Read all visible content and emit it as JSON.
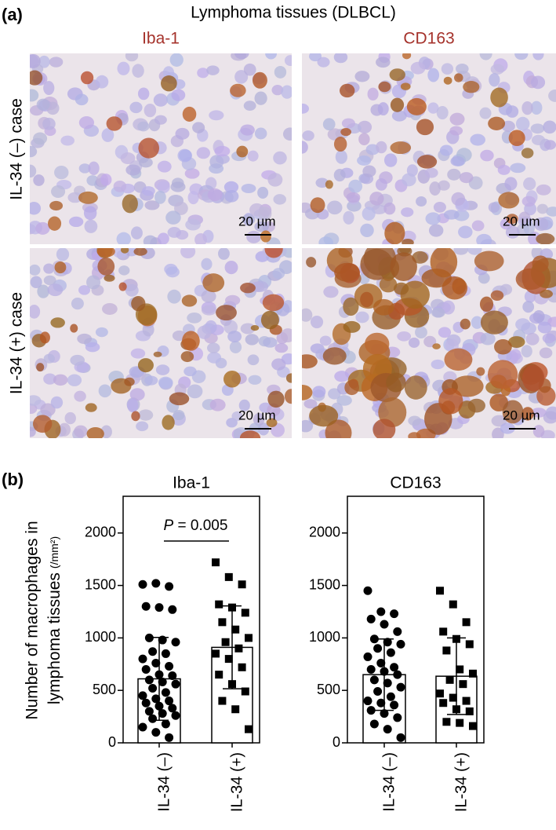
{
  "panel_a": {
    "label": "(a)",
    "title": "Lymphoma tissues (DLBCL)",
    "columns": [
      "Iba-1",
      "CD163"
    ],
    "rows": [
      "IL-34 (–) case",
      "IL-34 (+) case"
    ],
    "scale_labels": [
      "20 µm",
      "20 µm",
      "20 µm",
      "20 µm"
    ],
    "column_color": "#a5322b"
  },
  "panel_b_label": "(b)",
  "chart_data": [
    {
      "type": "bar",
      "title": "Iba-1",
      "y_label": [
        "Number of macrophages in",
        "lymphoma tissues",
        "(/mm²)"
      ],
      "categories": [
        "IL-34 (–)",
        "IL-34 (+)"
      ],
      "values": [
        610,
        910
      ],
      "errors": [
        395,
        395
      ],
      "markers": [
        "circle",
        "square"
      ],
      "points": [
        [
          1510,
          1520,
          1490,
          1300,
          1290,
          1270,
          1000,
          980,
          960,
          870,
          850,
          800,
          760,
          730,
          700,
          650,
          640,
          600,
          580,
          560,
          520,
          480,
          450,
          420,
          400,
          380,
          350,
          330,
          300,
          280,
          260,
          230,
          180,
          150,
          100,
          50
        ],
        [
          1720,
          1580,
          1510,
          1320,
          1290,
          1240,
          1150,
          1080,
          1000,
          960,
          900,
          850,
          800,
          720,
          650,
          560,
          490,
          400,
          320,
          130
        ]
      ],
      "annotation_symbol": "P",
      "annotation_value": " = 0.005",
      "ylim": [
        0,
        2350
      ],
      "yticks": [
        0,
        500,
        1000,
        1500,
        2000
      ]
    },
    {
      "type": "bar",
      "title": "CD163",
      "categories": [
        "IL-34 (–)",
        "IL-34 (+)"
      ],
      "values": [
        650,
        635
      ],
      "errors": [
        340,
        365
      ],
      "markers": [
        "circle",
        "square"
      ],
      "points": [
        [
          1450,
          1250,
          1230,
          1180,
          1130,
          1060,
          990,
          960,
          940,
          900,
          860,
          820,
          760,
          720,
          700,
          680,
          650,
          600,
          570,
          530,
          490,
          440,
          400,
          380,
          360,
          310,
          280,
          240,
          180,
          130,
          50
        ],
        [
          1450,
          1320,
          1150,
          1060,
          990,
          940,
          880,
          700,
          660,
          600,
          560,
          470,
          430,
          400,
          380,
          320,
          300,
          200,
          190,
          160
        ]
      ],
      "ylim": [
        0,
        2350
      ],
      "yticks": [
        0,
        500,
        1000,
        1500,
        2000
      ]
    }
  ]
}
